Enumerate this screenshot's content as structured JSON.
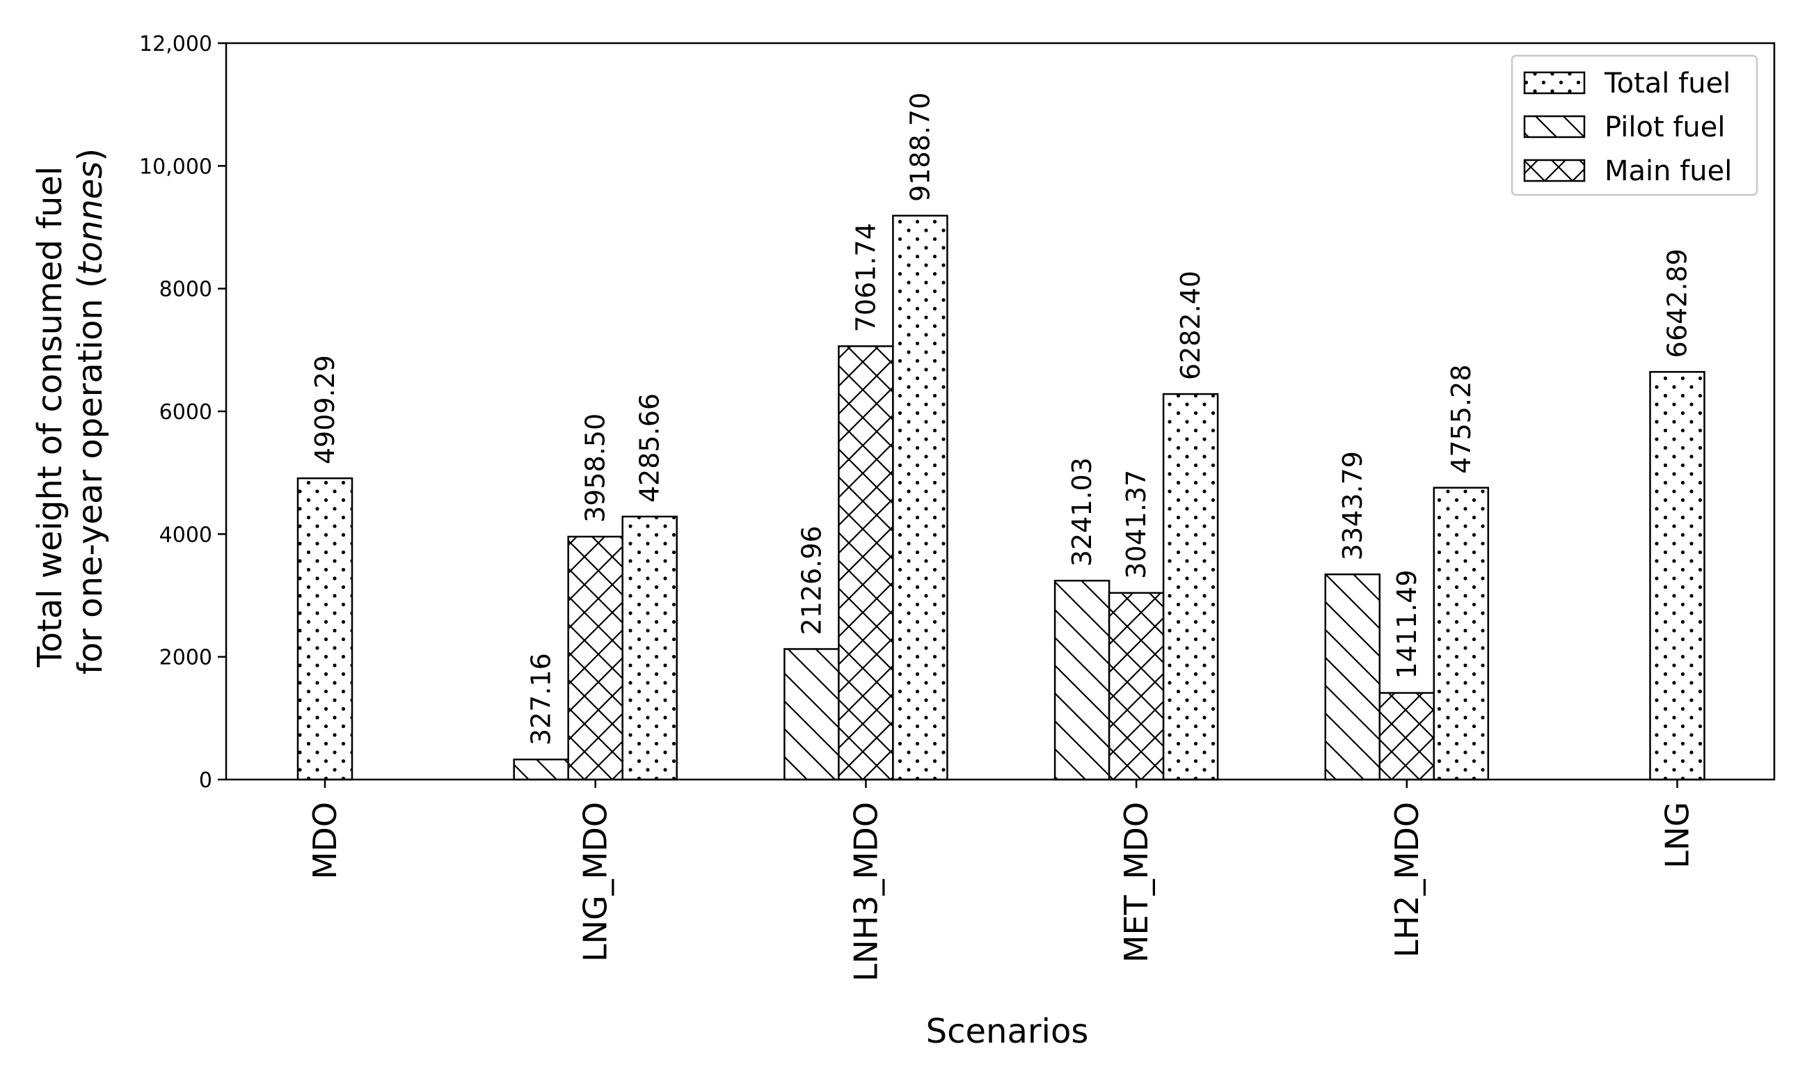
{
  "chart_data": {
    "type": "bar",
    "xlabel": "Scenarios",
    "ylabel_line1": "Total weight of consumed fuel",
    "ylabel_line2_prefix": "for one-year operation (",
    "ylabel_line2_unit": "tonnes",
    "ylabel_line2_suffix": ")",
    "ylim": [
      0,
      12000
    ],
    "yticks": [
      {
        "value": 0,
        "label": "0"
      },
      {
        "value": 2000,
        "label": "2000"
      },
      {
        "value": 4000,
        "label": "4000"
      },
      {
        "value": 6000,
        "label": "6000"
      },
      {
        "value": 8000,
        "label": "8000"
      },
      {
        "value": 10000,
        "label": "10,000"
      },
      {
        "value": 12000,
        "label": "12,000"
      }
    ],
    "categories": [
      "MDO",
      "LNG_MDO",
      "LNH3_MDO",
      "MET_MDO",
      "LH2_MDO",
      "LNG"
    ],
    "series": [
      {
        "name": "Pilot fuel",
        "pattern": "diagonal",
        "values": [
          null,
          327.16,
          2126.96,
          3241.03,
          3343.79,
          null
        ],
        "labels": [
          null,
          "327.16",
          "2126.96",
          "3241.03",
          "3343.79",
          null
        ]
      },
      {
        "name": "Main fuel",
        "pattern": "crosshatch",
        "values": [
          null,
          3958.5,
          7061.74,
          3041.37,
          1411.49,
          null
        ],
        "labels": [
          null,
          "3958.50",
          "7061.74",
          "3041.37",
          "1411.49",
          null
        ]
      },
      {
        "name": "Total fuel",
        "pattern": "dots",
        "values": [
          4909.29,
          4285.66,
          9188.7,
          6282.4,
          4755.28,
          6642.89
        ],
        "labels": [
          "4909.29",
          "4285.66",
          "9188.70",
          "6282.40",
          "4755.28",
          "6642.89"
        ]
      }
    ],
    "legend": {
      "placement": "top-right",
      "entries": [
        {
          "name": "Total fuel",
          "pattern": "dots"
        },
        {
          "name": "Pilot fuel",
          "pattern": "diagonal"
        },
        {
          "name": "Main fuel",
          "pattern": "crosshatch"
        }
      ]
    },
    "grid": false
  }
}
